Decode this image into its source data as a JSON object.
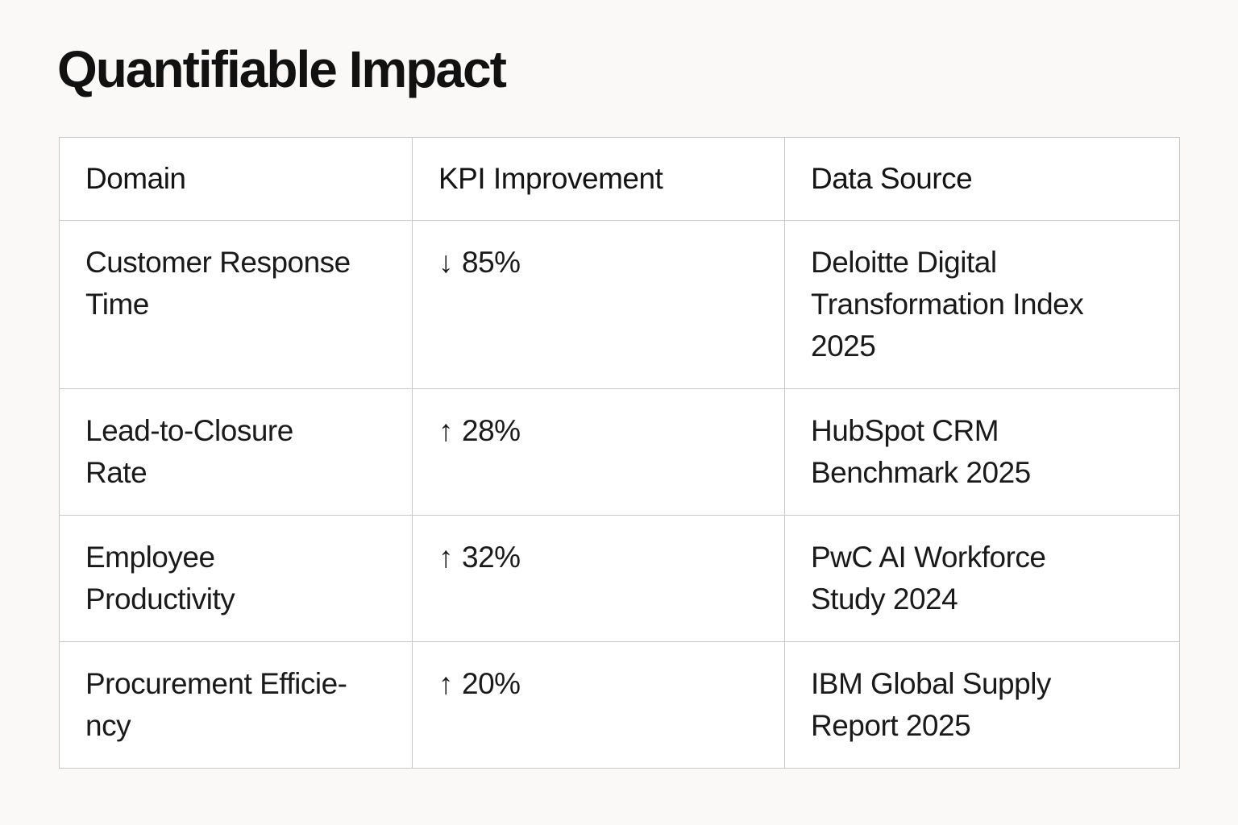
{
  "page": {
    "title": "Quantifiable Impact"
  },
  "colors": {
    "page_background": "#FAF9F7",
    "cell_background": "#FFFFFF",
    "table_border": "#C8C8C8",
    "text": "#141414"
  },
  "table": {
    "headers": [
      {
        "label": "Domain"
      },
      {
        "label": "KPI Improvement"
      },
      {
        "label": "Data Source"
      }
    ],
    "rows": [
      {
        "domain": "Customer Response\nTime",
        "kpi": {
          "direction": "down",
          "arrow": "↓",
          "value": "85%"
        },
        "source": "Deloitte Digital\nTransformation Index\n2025"
      },
      {
        "domain": "Lead-to-Closure\nRate",
        "kpi": {
          "direction": "up",
          "arrow": "↑",
          "value": "28%"
        },
        "source": "HubSpot CRM\nBenchmark 2025"
      },
      {
        "domain": "Employee\nProductivity",
        "kpi": {
          "direction": "up",
          "arrow": "↑",
          "value": "32%"
        },
        "source": "PwC AI Workforce\nStudy 2024"
      },
      {
        "domain": "Procurement Efficie-\nncy",
        "kpi": {
          "direction": "up",
          "arrow": "↑",
          "value": "20%"
        },
        "source": "IBM Global Supply\nReport 2025"
      }
    ]
  }
}
